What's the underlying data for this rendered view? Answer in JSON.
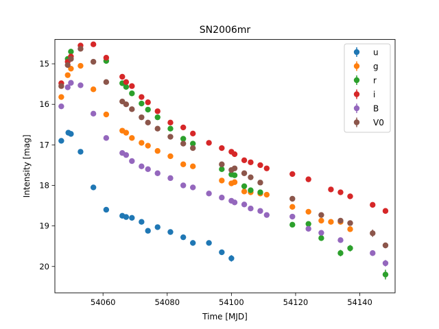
{
  "chart_data": {
    "type": "scatter",
    "title": "SN2006mr",
    "xlabel": "Time [MJD]",
    "ylabel": "Intensity [mag]",
    "xlim": [
      54045,
      54151
    ],
    "ylim": [
      20.65,
      14.4
    ],
    "y_inverted": true,
    "grid": false,
    "legend_position": "top-right",
    "xticks": [
      54060,
      54080,
      54100,
      54120,
      54140
    ],
    "xtick_labels": [
      "54060",
      "54080",
      "54100",
      "54120",
      "54140"
    ],
    "yticks": [
      15,
      16,
      17,
      18,
      19,
      20
    ],
    "ytick_labels": [
      "15",
      "16",
      "17",
      "18",
      "19",
      "20"
    ],
    "series": [
      {
        "name": "u",
        "color": "#1f77b4",
        "points": [
          [
            54047.0,
            16.9,
            0.04
          ],
          [
            54049.2,
            16.7,
            0.03
          ],
          [
            54050.0,
            16.73,
            0.03
          ],
          [
            54053.0,
            17.17,
            0.03
          ],
          [
            54057.0,
            18.05,
            0.03
          ],
          [
            54061.0,
            18.6,
            0.04
          ],
          [
            54066.0,
            18.75,
            0.04
          ],
          [
            54067.2,
            18.78,
            0.04
          ],
          [
            54069.0,
            18.8,
            0.04
          ],
          [
            54072.0,
            18.9,
            0.04
          ],
          [
            54074.0,
            19.12,
            0.05
          ],
          [
            54077.0,
            19.03,
            0.05
          ],
          [
            54081.0,
            19.15,
            0.05
          ],
          [
            54085.0,
            19.28,
            0.05
          ],
          [
            54088.0,
            19.42,
            0.07
          ],
          [
            54093.0,
            19.42,
            0.06
          ],
          [
            54097.0,
            19.65,
            0.06
          ],
          [
            54100.0,
            19.8,
            0.08
          ]
        ]
      },
      {
        "name": "g",
        "color": "#ff7f0e",
        "points": [
          [
            54047.0,
            15.82,
            0.03
          ],
          [
            54049.0,
            15.28,
            0.03
          ],
          [
            54050.0,
            15.12,
            0.03
          ],
          [
            54053.0,
            15.05,
            0.03
          ],
          [
            54057.0,
            15.63,
            0.03
          ],
          [
            54061.0,
            16.25,
            0.03
          ],
          [
            54066.0,
            16.65,
            0.03
          ],
          [
            54067.2,
            16.7,
            0.03
          ],
          [
            54069.0,
            16.83,
            0.03
          ],
          [
            54072.0,
            16.95,
            0.03
          ],
          [
            54074.0,
            17.02,
            0.03
          ],
          [
            54077.0,
            17.15,
            0.03
          ],
          [
            54081.0,
            17.28,
            0.03
          ],
          [
            54085.0,
            17.48,
            0.03
          ],
          [
            54088.0,
            17.53,
            0.03
          ],
          [
            54097.0,
            17.88,
            0.03
          ],
          [
            54100.0,
            17.95,
            0.03
          ],
          [
            54101.0,
            17.92,
            0.03
          ],
          [
            54104.0,
            18.15,
            0.03
          ],
          [
            54106.0,
            18.17,
            0.03
          ],
          [
            54109.0,
            18.2,
            0.03
          ],
          [
            54111.0,
            18.23,
            0.03
          ],
          [
            54119.0,
            18.53,
            0.05
          ],
          [
            54124.0,
            18.65,
            0.05
          ],
          [
            54128.0,
            18.87,
            0.05
          ],
          [
            54131.0,
            18.9,
            0.05
          ],
          [
            54134.0,
            18.9,
            0.05
          ],
          [
            54137.0,
            19.08,
            0.07
          ]
        ]
      },
      {
        "name": "r",
        "color": "#2ca02c",
        "points": [
          [
            54049.0,
            14.88,
            0.03
          ],
          [
            54050.0,
            14.7,
            0.03
          ],
          [
            54061.0,
            14.93,
            0.03
          ],
          [
            54066.0,
            15.48,
            0.03
          ],
          [
            54067.2,
            15.57,
            0.03
          ],
          [
            54069.0,
            15.73,
            0.03
          ],
          [
            54072.0,
            15.98,
            0.03
          ],
          [
            54074.0,
            16.13,
            0.03
          ],
          [
            54077.0,
            16.32,
            0.03
          ],
          [
            54081.0,
            16.6,
            0.03
          ],
          [
            54085.0,
            16.85,
            0.03
          ],
          [
            54088.0,
            16.97,
            0.03
          ],
          [
            54097.0,
            17.6,
            0.03
          ],
          [
            54100.0,
            17.73,
            0.03
          ],
          [
            54101.0,
            17.75,
            0.03
          ],
          [
            54104.0,
            18.02,
            0.03
          ],
          [
            54106.0,
            18.12,
            0.03
          ],
          [
            54109.0,
            18.17,
            0.03
          ],
          [
            54119.0,
            18.97,
            0.05
          ],
          [
            54124.0,
            18.95,
            0.05
          ],
          [
            54128.0,
            19.3,
            0.06
          ],
          [
            54134.0,
            19.67,
            0.08
          ],
          [
            54137.0,
            19.55,
            0.08
          ],
          [
            54148.0,
            20.2,
            0.12
          ]
        ]
      },
      {
        "name": "i",
        "color": "#d62728",
        "points": [
          [
            54047.0,
            15.48,
            0.03
          ],
          [
            54049.0,
            14.95,
            0.03
          ],
          [
            54050.0,
            14.82,
            0.03
          ],
          [
            54053.0,
            14.55,
            0.03
          ],
          [
            54057.0,
            14.52,
            0.03
          ],
          [
            54061.0,
            14.85,
            0.03
          ],
          [
            54066.0,
            15.32,
            0.03
          ],
          [
            54067.2,
            15.45,
            0.03
          ],
          [
            54069.0,
            15.55,
            0.03
          ],
          [
            54072.0,
            15.82,
            0.03
          ],
          [
            54074.0,
            15.95,
            0.03
          ],
          [
            54077.0,
            16.17,
            0.03
          ],
          [
            54081.0,
            16.45,
            0.03
          ],
          [
            54085.0,
            16.57,
            0.03
          ],
          [
            54088.0,
            16.72,
            0.03
          ],
          [
            54093.0,
            16.95,
            0.03
          ],
          [
            54097.0,
            17.08,
            0.03
          ],
          [
            54100.0,
            17.17,
            0.03
          ],
          [
            54101.0,
            17.23,
            0.03
          ],
          [
            54104.0,
            17.38,
            0.03
          ],
          [
            54106.0,
            17.43,
            0.03
          ],
          [
            54109.0,
            17.5,
            0.03
          ],
          [
            54111.0,
            17.58,
            0.03
          ],
          [
            54119.0,
            17.72,
            0.04
          ],
          [
            54124.0,
            17.85,
            0.04
          ],
          [
            54131.0,
            18.1,
            0.04
          ],
          [
            54134.0,
            18.17,
            0.04
          ],
          [
            54137.0,
            18.27,
            0.04
          ],
          [
            54144.0,
            18.48,
            0.05
          ],
          [
            54148.0,
            18.63,
            0.05
          ]
        ]
      },
      {
        "name": "B",
        "color": "#9467bd",
        "points": [
          [
            54047.0,
            16.05,
            0.03
          ],
          [
            54049.0,
            15.58,
            0.03
          ],
          [
            54050.0,
            15.47,
            0.03
          ],
          [
            54053.0,
            15.53,
            0.03
          ],
          [
            54057.0,
            16.23,
            0.03
          ],
          [
            54061.0,
            16.83,
            0.03
          ],
          [
            54066.0,
            17.2,
            0.03
          ],
          [
            54067.2,
            17.25,
            0.03
          ],
          [
            54069.0,
            17.4,
            0.03
          ],
          [
            54072.0,
            17.53,
            0.03
          ],
          [
            54074.0,
            17.6,
            0.03
          ],
          [
            54077.0,
            17.7,
            0.03
          ],
          [
            54081.0,
            17.82,
            0.03
          ],
          [
            54085.0,
            18.0,
            0.03
          ],
          [
            54088.0,
            18.05,
            0.03
          ],
          [
            54093.0,
            18.2,
            0.03
          ],
          [
            54097.0,
            18.3,
            0.03
          ],
          [
            54100.0,
            18.38,
            0.03
          ],
          [
            54101.0,
            18.42,
            0.03
          ],
          [
            54104.0,
            18.47,
            0.03
          ],
          [
            54106.0,
            18.57,
            0.03
          ],
          [
            54109.0,
            18.63,
            0.03
          ],
          [
            54111.0,
            18.73,
            0.03
          ],
          [
            54119.0,
            18.77,
            0.04
          ],
          [
            54124.0,
            19.07,
            0.05
          ],
          [
            54128.0,
            19.17,
            0.05
          ],
          [
            54134.0,
            19.35,
            0.06
          ],
          [
            54144.0,
            19.67,
            0.07
          ],
          [
            54148.0,
            19.92,
            0.08
          ]
        ]
      },
      {
        "name": "V0",
        "color": "#8c564b",
        "points": [
          [
            54047.0,
            15.55,
            0.03
          ],
          [
            54049.0,
            15.03,
            0.03
          ],
          [
            54050.0,
            14.88,
            0.03
          ],
          [
            54053.0,
            14.63,
            0.03
          ],
          [
            54057.0,
            14.95,
            0.03
          ],
          [
            54061.0,
            15.45,
            0.03
          ],
          [
            54066.0,
            15.93,
            0.03
          ],
          [
            54067.2,
            16.0,
            0.03
          ],
          [
            54069.0,
            16.12,
            0.03
          ],
          [
            54072.0,
            16.32,
            0.03
          ],
          [
            54074.0,
            16.45,
            0.03
          ],
          [
            54077.0,
            16.6,
            0.03
          ],
          [
            54081.0,
            16.8,
            0.03
          ],
          [
            54085.0,
            16.97,
            0.03
          ],
          [
            54088.0,
            17.08,
            0.03
          ],
          [
            54097.0,
            17.48,
            0.03
          ],
          [
            54100.0,
            17.62,
            0.03
          ],
          [
            54101.0,
            17.58,
            0.03
          ],
          [
            54104.0,
            17.7,
            0.03
          ],
          [
            54106.0,
            17.8,
            0.03
          ],
          [
            54109.0,
            17.93,
            0.03
          ],
          [
            54119.0,
            18.33,
            0.04
          ],
          [
            54128.0,
            18.73,
            0.05
          ],
          [
            54134.0,
            18.87,
            0.05
          ],
          [
            54137.0,
            18.93,
            0.05
          ],
          [
            54144.0,
            19.18,
            0.09
          ],
          [
            54148.0,
            19.48,
            0.07
          ]
        ]
      }
    ]
  }
}
